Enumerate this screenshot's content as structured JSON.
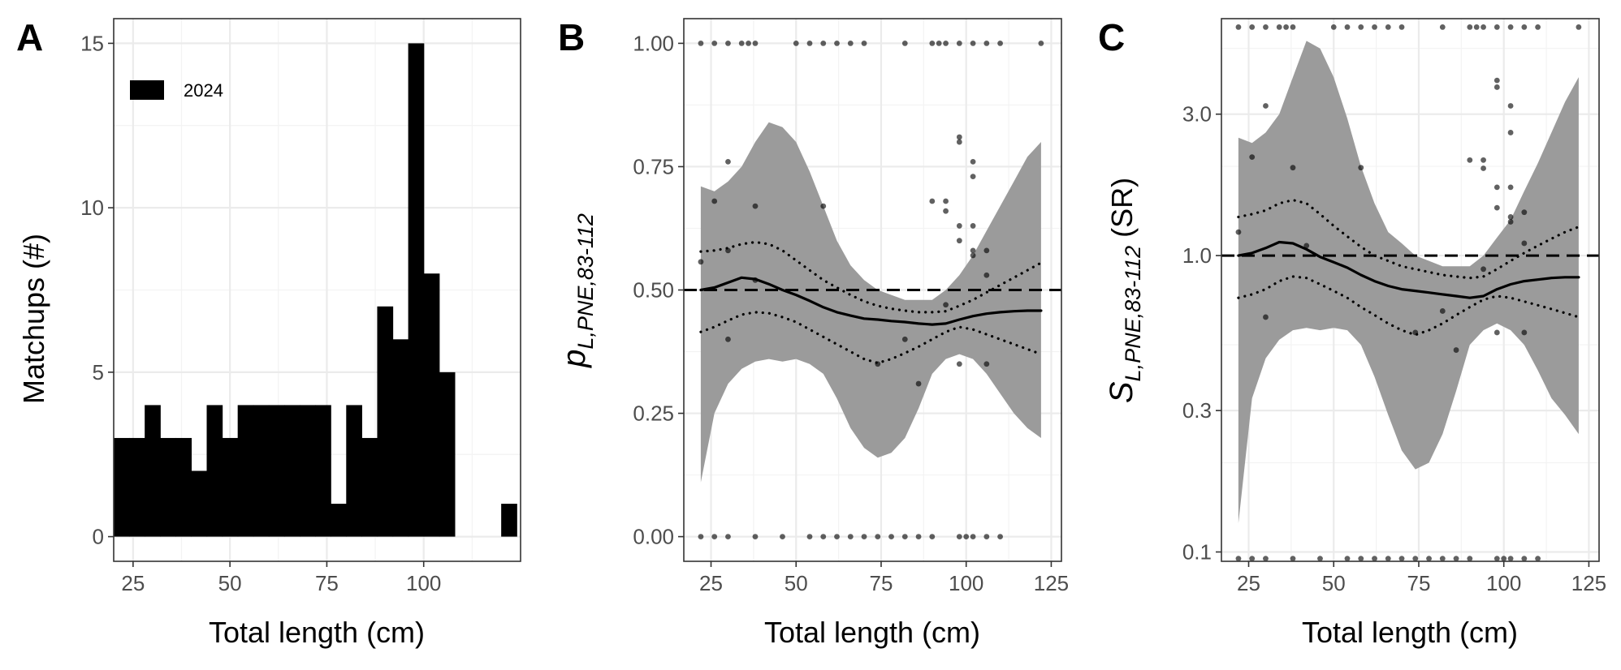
{
  "panels": {
    "a": {
      "letter": "A"
    },
    "b": {
      "letter": "B"
    },
    "c": {
      "letter": "C"
    }
  },
  "chart_data": [
    {
      "panel": "A",
      "type": "bar",
      "xlabel": "Total length (cm)",
      "ylabel": "Matchups (#)",
      "xlim": [
        20,
        125
      ],
      "ylim": [
        -0.75,
        15.75
      ],
      "xticks": [
        25,
        50,
        75,
        100
      ],
      "yticks": [
        0,
        5,
        10,
        15
      ],
      "bin_width": 4,
      "legend": {
        "entries": [
          "2024"
        ],
        "placement": "top-left",
        "color": "#000000"
      },
      "series": [
        {
          "name": "2024",
          "color": "#000000",
          "bin_start": [
            20,
            24,
            28,
            32,
            36,
            40,
            44,
            48,
            52,
            56,
            60,
            64,
            68,
            72,
            76,
            80,
            84,
            88,
            92,
            96,
            100,
            104,
            108,
            112,
            116,
            120
          ],
          "values": [
            3,
            3,
            4,
            3,
            3,
            2,
            4,
            3,
            4,
            4,
            4,
            4,
            4,
            4,
            1,
            4,
            3,
            7,
            6,
            15,
            8,
            5,
            0,
            0,
            0,
            1
          ]
        }
      ]
    },
    {
      "panel": "B",
      "type": "line",
      "xlabel": "Total length (cm)",
      "ylabel_main": "p",
      "ylabel_sub": "L,PNE,83-112",
      "xlim": [
        17,
        128
      ],
      "ylim": [
        -0.05,
        1.05
      ],
      "xticks": [
        25,
        50,
        75,
        100,
        125
      ],
      "yticks": [
        0,
        0.25,
        0.5,
        0.75,
        1
      ],
      "ytick_labels": [
        "0.00",
        "0.25",
        "0.50",
        "0.75",
        "1.00"
      ],
      "reference_line": 0.5,
      "band": {
        "x": [
          22,
          26,
          30,
          34,
          38,
          42,
          46,
          50,
          54,
          58,
          62,
          66,
          70,
          74,
          78,
          82,
          86,
          90,
          94,
          98,
          102,
          106,
          110,
          114,
          118,
          122
        ],
        "lower": [
          0.11,
          0.25,
          0.31,
          0.34,
          0.355,
          0.36,
          0.355,
          0.36,
          0.35,
          0.33,
          0.28,
          0.22,
          0.18,
          0.16,
          0.17,
          0.2,
          0.26,
          0.33,
          0.36,
          0.37,
          0.36,
          0.33,
          0.29,
          0.25,
          0.22,
          0.2
        ],
        "upper": [
          0.71,
          0.7,
          0.72,
          0.75,
          0.8,
          0.84,
          0.83,
          0.8,
          0.74,
          0.67,
          0.6,
          0.55,
          0.52,
          0.5,
          0.49,
          0.48,
          0.48,
          0.48,
          0.5,
          0.53,
          0.57,
          0.62,
          0.67,
          0.72,
          0.77,
          0.8
        ]
      },
      "series": [
        {
          "style": "solid",
          "x": [
            22,
            26,
            30,
            34,
            38,
            42,
            46,
            50,
            54,
            58,
            62,
            66,
            70,
            74,
            78,
            82,
            86,
            90,
            94,
            98,
            102,
            106,
            110,
            114,
            118,
            122
          ],
          "y": [
            0.5,
            0.505,
            0.515,
            0.525,
            0.522,
            0.512,
            0.5,
            0.49,
            0.478,
            0.465,
            0.455,
            0.448,
            0.442,
            0.44,
            0.437,
            0.435,
            0.432,
            0.43,
            0.432,
            0.44,
            0.447,
            0.452,
            0.455,
            0.457,
            0.458,
            0.458
          ]
        },
        {
          "style": "dotted",
          "x": [
            22,
            26,
            30,
            34,
            38,
            42,
            46,
            50,
            54,
            58,
            62,
            66,
            70,
            74,
            78,
            82,
            86,
            90,
            94,
            98,
            102,
            106,
            110,
            114,
            118,
            122
          ],
          "y": [
            0.578,
            0.58,
            0.585,
            0.593,
            0.597,
            0.593,
            0.58,
            0.56,
            0.54,
            0.52,
            0.505,
            0.49,
            0.477,
            0.468,
            0.462,
            0.458,
            0.455,
            0.455,
            0.457,
            0.468,
            0.48,
            0.495,
            0.51,
            0.525,
            0.54,
            0.555
          ]
        },
        {
          "style": "dotted",
          "x": [
            22,
            26,
            30,
            34,
            38,
            42,
            46,
            50,
            54,
            58,
            62,
            66,
            70,
            74,
            78,
            82,
            86,
            90,
            94,
            98,
            102,
            106,
            110,
            114,
            118,
            122
          ],
          "y": [
            0.415,
            0.425,
            0.438,
            0.45,
            0.455,
            0.453,
            0.445,
            0.435,
            0.42,
            0.405,
            0.39,
            0.375,
            0.36,
            0.352,
            0.36,
            0.372,
            0.385,
            0.4,
            0.415,
            0.425,
            0.42,
            0.41,
            0.4,
            0.39,
            0.38,
            0.37
          ]
        }
      ],
      "points": [
        [
          22,
          0.557
        ],
        [
          30,
          0.58
        ],
        [
          30,
          0.4
        ],
        [
          30,
          0.76
        ],
        [
          26,
          0.68
        ],
        [
          38,
          0.67
        ],
        [
          38,
          0.52
        ],
        [
          58,
          0.67
        ],
        [
          74,
          0.35
        ],
        [
          82,
          0.4
        ],
        [
          86,
          0.31
        ],
        [
          90,
          0.68
        ],
        [
          94,
          0.68
        ],
        [
          94,
          0.66
        ],
        [
          94,
          0.47
        ],
        [
          98,
          0.81
        ],
        [
          98,
          0.8
        ],
        [
          98,
          0.63
        ],
        [
          98,
          0.6
        ],
        [
          98,
          0.35
        ],
        [
          102,
          0.76
        ],
        [
          102,
          0.73
        ],
        [
          102,
          0.63
        ],
        [
          102,
          0.58
        ],
        [
          102,
          0.57
        ],
        [
          106,
          0.58
        ],
        [
          106,
          0.53
        ],
        [
          106,
          0.35
        ],
        [
          22,
          1
        ],
        [
          26,
          1
        ],
        [
          30,
          1
        ],
        [
          34,
          1
        ],
        [
          36,
          1
        ],
        [
          38,
          1
        ],
        [
          50,
          1
        ],
        [
          54,
          1
        ],
        [
          58,
          1
        ],
        [
          62,
          1
        ],
        [
          66,
          1
        ],
        [
          70,
          1
        ],
        [
          82,
          1
        ],
        [
          90,
          1
        ],
        [
          92,
          1
        ],
        [
          94,
          1
        ],
        [
          98,
          1
        ],
        [
          102,
          1
        ],
        [
          106,
          1
        ],
        [
          110,
          1
        ],
        [
          122,
          1
        ],
        [
          22,
          0
        ],
        [
          26,
          0
        ],
        [
          30,
          0
        ],
        [
          38,
          0
        ],
        [
          46,
          0
        ],
        [
          54,
          0
        ],
        [
          58,
          0
        ],
        [
          62,
          0
        ],
        [
          66,
          0
        ],
        [
          70,
          0
        ],
        [
          74,
          0
        ],
        [
          78,
          0
        ],
        [
          82,
          0
        ],
        [
          86,
          0
        ],
        [
          90,
          0
        ],
        [
          98,
          0
        ],
        [
          100,
          0
        ],
        [
          102,
          0
        ],
        [
          106,
          0
        ],
        [
          110,
          0
        ]
      ]
    },
    {
      "panel": "C",
      "type": "line",
      "xlabel": "Total length (cm)",
      "ylabel_main": "S",
      "ylabel_sub": "L,PNE,83-112",
      "ylabel_tail": "(SR)",
      "log_y": true,
      "xlim": [
        17,
        128
      ],
      "ylim": [
        0.093,
        6.3
      ],
      "xticks": [
        25,
        50,
        75,
        100,
        125
      ],
      "yticks": [
        0.1,
        0.3,
        1,
        3
      ],
      "ytick_labels": [
        "0.1",
        "0.3",
        "1.0",
        "3.0"
      ],
      "reference_line": 1,
      "band": {
        "x": [
          22,
          26,
          30,
          34,
          38,
          42,
          46,
          50,
          54,
          58,
          62,
          66,
          70,
          74,
          78,
          82,
          86,
          90,
          94,
          98,
          102,
          106,
          110,
          114,
          118,
          122
        ],
        "lower": [
          0.125,
          0.33,
          0.45,
          0.52,
          0.56,
          0.57,
          0.56,
          0.57,
          0.56,
          0.5,
          0.39,
          0.29,
          0.22,
          0.19,
          0.2,
          0.25,
          0.35,
          0.5,
          0.56,
          0.59,
          0.56,
          0.5,
          0.41,
          0.33,
          0.29,
          0.25
        ],
        "upper": [
          2.5,
          2.4,
          2.6,
          3.0,
          4.0,
          5.3,
          5.0,
          4.0,
          2.9,
          2.0,
          1.5,
          1.2,
          1.1,
          1.0,
          0.96,
          0.92,
          0.92,
          0.92,
          1.0,
          1.15,
          1.32,
          1.65,
          2.05,
          2.6,
          3.3,
          4.0
        ]
      },
      "series": [
        {
          "style": "solid",
          "x": [
            22,
            26,
            30,
            34,
            38,
            42,
            46,
            50,
            54,
            58,
            62,
            66,
            70,
            74,
            78,
            82,
            86,
            90,
            94,
            98,
            102,
            106,
            110,
            114,
            118,
            122
          ],
          "y": [
            1.0,
            1.02,
            1.06,
            1.11,
            1.1,
            1.05,
            0.99,
            0.95,
            0.91,
            0.86,
            0.82,
            0.79,
            0.77,
            0.76,
            0.75,
            0.74,
            0.73,
            0.72,
            0.73,
            0.77,
            0.8,
            0.82,
            0.83,
            0.84,
            0.845,
            0.845
          ]
        },
        {
          "style": "dotted",
          "x": [
            22,
            26,
            30,
            34,
            38,
            42,
            46,
            50,
            54,
            58,
            62,
            66,
            70,
            74,
            78,
            82,
            86,
            90,
            94,
            98,
            102,
            106,
            110,
            114,
            118,
            122
          ],
          "y": [
            1.35,
            1.38,
            1.42,
            1.5,
            1.54,
            1.5,
            1.38,
            1.26,
            1.16,
            1.07,
            1.0,
            0.96,
            0.92,
            0.9,
            0.88,
            0.86,
            0.85,
            0.84,
            0.85,
            0.9,
            0.96,
            1.02,
            1.08,
            1.14,
            1.2,
            1.25
          ]
        },
        {
          "style": "dotted",
          "x": [
            22,
            26,
            30,
            34,
            38,
            42,
            46,
            50,
            54,
            58,
            62,
            66,
            70,
            74,
            78,
            82,
            86,
            90,
            94,
            98,
            102,
            106,
            110,
            114,
            118,
            122
          ],
          "y": [
            0.72,
            0.74,
            0.77,
            0.82,
            0.85,
            0.84,
            0.8,
            0.76,
            0.72,
            0.67,
            0.63,
            0.59,
            0.56,
            0.54,
            0.56,
            0.59,
            0.63,
            0.67,
            0.71,
            0.73,
            0.72,
            0.7,
            0.68,
            0.66,
            0.64,
            0.62
          ]
        }
      ],
      "points": [
        [
          22,
          1.2
        ],
        [
          26,
          2.15
        ],
        [
          30,
          0.62
        ],
        [
          30,
          3.2
        ],
        [
          38,
          1.98
        ],
        [
          42,
          1.08
        ],
        [
          58,
          1.98
        ],
        [
          74,
          0.55
        ],
        [
          82,
          0.65
        ],
        [
          86,
          0.48
        ],
        [
          90,
          2.1
        ],
        [
          94,
          2.1
        ],
        [
          94,
          1.97
        ],
        [
          94,
          0.9
        ],
        [
          98,
          3.9
        ],
        [
          98,
          3.7
        ],
        [
          98,
          1.7
        ],
        [
          98,
          1.45
        ],
        [
          98,
          0.55
        ],
        [
          102,
          3.2
        ],
        [
          102,
          2.6
        ],
        [
          102,
          1.7
        ],
        [
          102,
          1.35
        ],
        [
          102,
          1.3
        ],
        [
          106,
          1.4
        ],
        [
          106,
          1.1
        ],
        [
          106,
          0.55
        ],
        [
          22,
          5.9
        ],
        [
          26,
          5.9
        ],
        [
          30,
          5.9
        ],
        [
          34,
          5.9
        ],
        [
          36,
          5.9
        ],
        [
          38,
          5.9
        ],
        [
          50,
          5.9
        ],
        [
          54,
          5.9
        ],
        [
          58,
          5.9
        ],
        [
          62,
          5.9
        ],
        [
          66,
          5.9
        ],
        [
          70,
          5.9
        ],
        [
          82,
          5.9
        ],
        [
          90,
          5.9
        ],
        [
          92,
          5.9
        ],
        [
          94,
          5.9
        ],
        [
          98,
          5.9
        ],
        [
          102,
          5.9
        ],
        [
          106,
          5.9
        ],
        [
          110,
          5.9
        ],
        [
          122,
          5.9
        ],
        [
          22,
          0.095
        ],
        [
          26,
          0.095
        ],
        [
          30,
          0.095
        ],
        [
          38,
          0.095
        ],
        [
          46,
          0.095
        ],
        [
          54,
          0.095
        ],
        [
          58,
          0.095
        ],
        [
          62,
          0.095
        ],
        [
          66,
          0.095
        ],
        [
          70,
          0.095
        ],
        [
          74,
          0.095
        ],
        [
          78,
          0.095
        ],
        [
          82,
          0.095
        ],
        [
          86,
          0.095
        ],
        [
          90,
          0.095
        ],
        [
          98,
          0.095
        ],
        [
          100,
          0.095
        ],
        [
          102,
          0.095
        ],
        [
          106,
          0.095
        ],
        [
          110,
          0.095
        ]
      ]
    }
  ]
}
